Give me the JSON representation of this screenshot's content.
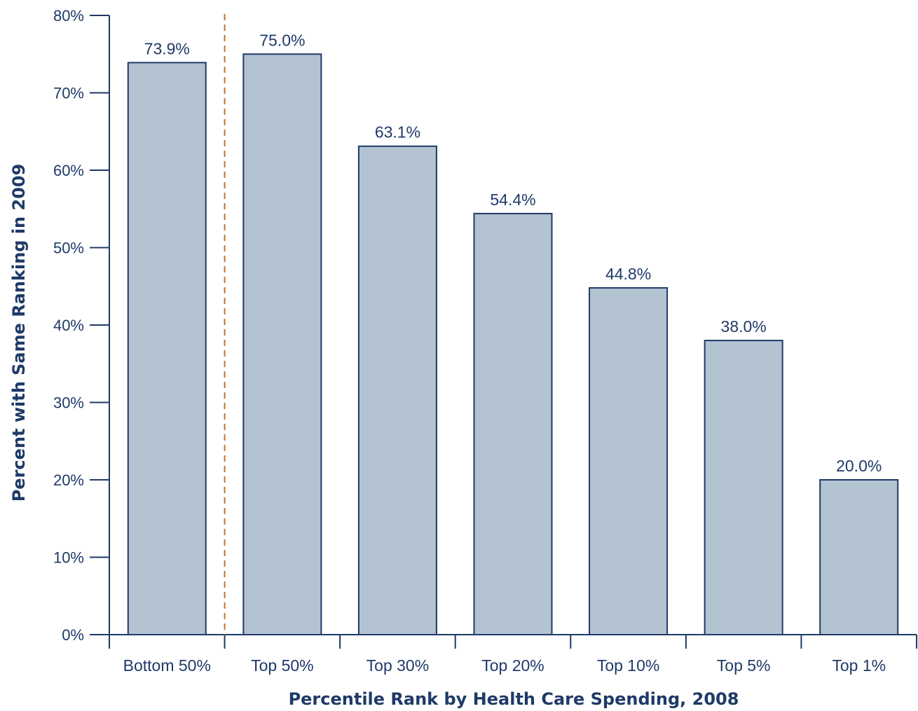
{
  "chart_data": {
    "type": "bar",
    "title": "",
    "xlabel": "Percentile Rank by Health Care Spending, 2008",
    "ylabel": "Percent with Same Ranking in 2009",
    "categories": [
      "Bottom 50%",
      "Top 50%",
      "Top 30%",
      "Top 20%",
      "Top 10%",
      "Top 5%",
      "Top 1%"
    ],
    "values": [
      73.9,
      75.0,
      63.1,
      54.4,
      44.8,
      38.0,
      20.0
    ],
    "value_labels": [
      "73.9%",
      "75.0%",
      "63.1%",
      "54.4%",
      "44.8%",
      "38.0%",
      "20.0%"
    ],
    "ylim": [
      0,
      80
    ],
    "yticks": [
      0,
      10,
      20,
      30,
      40,
      50,
      60,
      70,
      80
    ],
    "ytick_labels": [
      "0%",
      "10%",
      "20%",
      "30%",
      "40%",
      "50%",
      "60%",
      "70%",
      "80%"
    ],
    "grid": false,
    "legend": "none",
    "separator_after_category": "Bottom 50%",
    "colors": {
      "bar_fill": "#b3c3d2",
      "bar_stroke": "#1f3a68",
      "axis": "#1f3a68",
      "text": "#1f3a68",
      "separator": "#c0722a"
    }
  }
}
